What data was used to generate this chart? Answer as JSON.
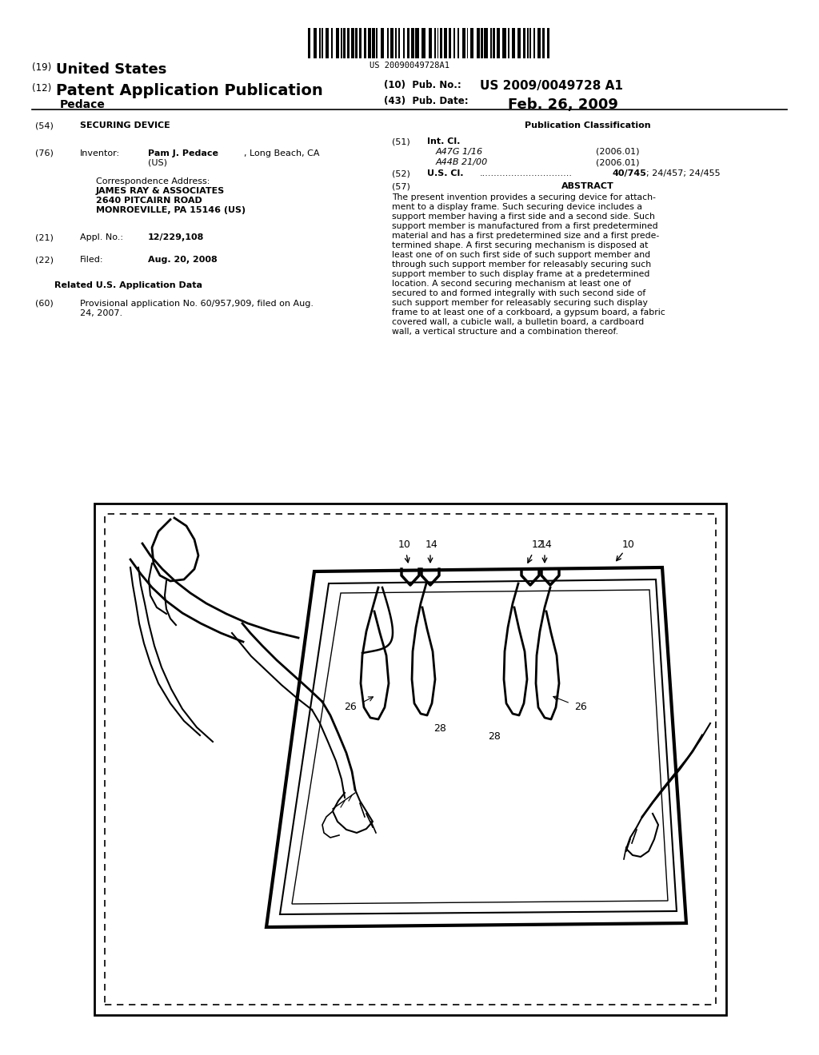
{
  "bg": "#ffffff",
  "barcode_num": "US 20090049728A1",
  "abstract_lines": [
    "The present invention provides a securing device for attach-",
    "ment to a display frame. Such securing device includes a",
    "support member having a first side and a second side. Such",
    "support member is manufactured from a first predetermined",
    "material and has a first predetermined size and a first prede-",
    "termined shape. A first securing mechanism is disposed at",
    "least one of on such first side of such support member and",
    "through such support member for releasably securing such",
    "support member to such display frame at a predetermined",
    "location. A second securing mechanism at least one of",
    "secured to and formed integrally with such second side of",
    "such support member for releasably securing such display",
    "frame to at least one of a corkboard, a gypsum board, a fabric",
    "covered wall, a cubicle wall, a bulletin board, a cardboard",
    "wall, a vertical structure and a combination thereof."
  ]
}
